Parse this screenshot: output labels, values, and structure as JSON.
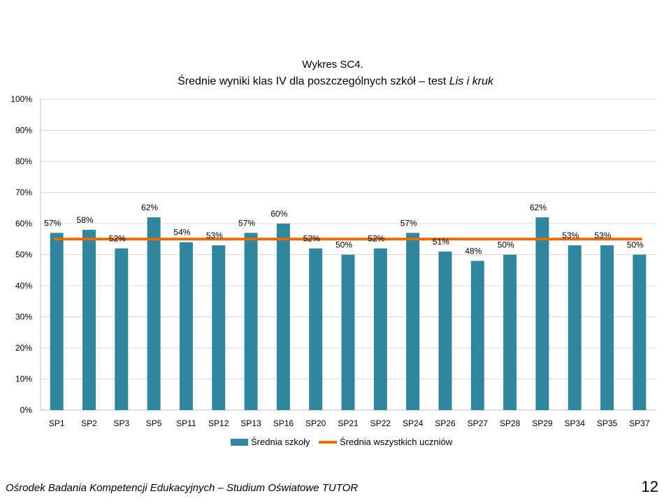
{
  "chart_data": {
    "type": "bar",
    "title_line1": "Wykres SC4.",
    "title_line2_main": "Średnie wyniki klas IV dla poszczególnych szkół – test ",
    "title_line2_italic": "Lis i kruk",
    "categories": [
      "SP1",
      "SP2",
      "SP3",
      "SP5",
      "SP11",
      "SP12",
      "SP13",
      "SP16",
      "SP20",
      "SP21",
      "SP22",
      "SP24",
      "SP26",
      "SP27",
      "SP28",
      "SP29",
      "SP34",
      "SP35",
      "SP37"
    ],
    "series": [
      {
        "name": "Średnia szkoły",
        "values": [
          57,
          58,
          52,
          62,
          54,
          53,
          57,
          60,
          52,
          50,
          52,
          57,
          51,
          48,
          50,
          62,
          53,
          53,
          50
        ],
        "color": "#31859c"
      },
      {
        "name": "Średnia wszystkich uczniów",
        "values": [
          55,
          55,
          55,
          55,
          55,
          55,
          55,
          55,
          55,
          55,
          55,
          55,
          55,
          55,
          55,
          55,
          55,
          55,
          55
        ],
        "color": "#e46c0a"
      }
    ],
    "data_labels": [
      "57%",
      "58%",
      "52%",
      "62%",
      "54%",
      "53%",
      "57%",
      "60%",
      "52%",
      "50%",
      "52%",
      "57%",
      "51%",
      "48%",
      "50%",
      "62%",
      "53%",
      "53%",
      "50%"
    ],
    "ylim": [
      0,
      100
    ],
    "y_ticks": [
      0,
      10,
      20,
      30,
      40,
      50,
      60,
      70,
      80,
      90,
      100
    ],
    "y_tick_labels": [
      "0%",
      "10%",
      "20%",
      "30%",
      "40%",
      "50%",
      "60%",
      "70%",
      "80%",
      "90%",
      "100%"
    ],
    "grid": true,
    "legend": "bottom"
  },
  "footer": {
    "left_text": "Ośrodek Badania Kompetencji Edukacyjnych – Studium Oświatowe TUTOR",
    "page_number": "12"
  },
  "colors": {
    "bar": "#31859c",
    "line": "#e46c0a",
    "grid": "#d9d9d9"
  }
}
